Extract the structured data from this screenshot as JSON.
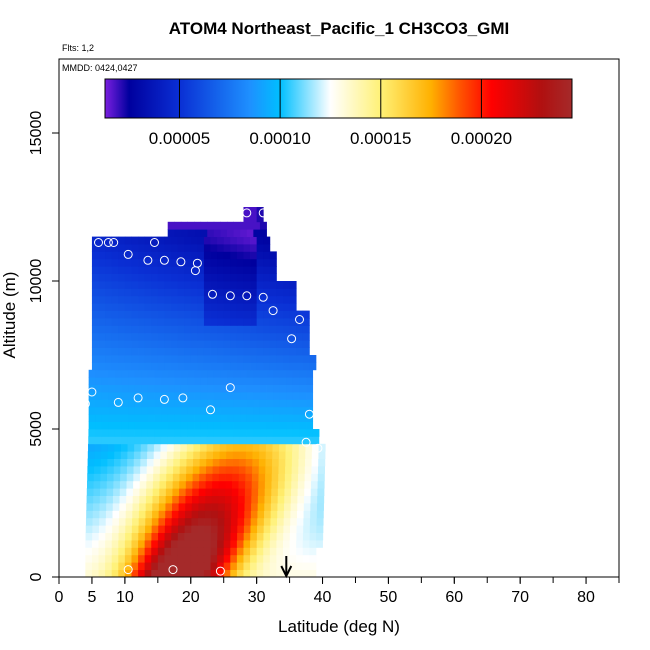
{
  "chart_data": {
    "type": "heatmap",
    "title": "ATOM4 Northeast_Pacific_1 CH3CO3_GMI",
    "flights_label": "Flts: 1,2",
    "dates_label": "MMDD: 0424,0427",
    "xlabel": "Latitude (deg N)",
    "ylabel": "Altitude (m)",
    "xlim": [
      0,
      85
    ],
    "ylim": [
      0,
      17500
    ],
    "x_ticks": [
      0,
      5,
      10,
      20,
      30,
      40,
      50,
      60,
      70,
      80
    ],
    "x_tick_labels": [
      "0",
      "5",
      "10",
      "20",
      "30",
      "40",
      "50",
      "60",
      "70",
      "80"
    ],
    "y_ticks": [
      0,
      5000,
      10000,
      15000
    ],
    "y_tick_labels": [
      "0",
      "5000",
      "10000",
      "15000"
    ],
    "colorbar": {
      "min": 1.3e-05,
      "max": 0.000245,
      "ticks": [
        5e-05,
        0.0001,
        0.00015,
        0.0002
      ],
      "tick_labels": [
        "0.00005",
        "0.00010",
        "0.00015",
        "0.00020"
      ],
      "colors": [
        "#7b1fe0",
        "#00009e",
        "#0a2fd4",
        "#1e90ff",
        "#00bfff",
        "#ffffff",
        "#fff176",
        "#ffb000",
        "#ff5000",
        "#ff0000",
        "#b01010",
        "#a52a2a"
      ]
    },
    "arrow_latitude": 34.5,
    "observations": [
      {
        "lat": 28.5,
        "alt": 12300
      },
      {
        "lat": 31,
        "alt": 12300
      },
      {
        "lat": 6,
        "alt": 11300
      },
      {
        "lat": 7.5,
        "alt": 11300
      },
      {
        "lat": 8.3,
        "alt": 11300
      },
      {
        "lat": 14.5,
        "alt": 11300
      },
      {
        "lat": 10.5,
        "alt": 10900
      },
      {
        "lat": 13.5,
        "alt": 10700
      },
      {
        "lat": 16,
        "alt": 10700
      },
      {
        "lat": 18.5,
        "alt": 10650
      },
      {
        "lat": 21,
        "alt": 10600
      },
      {
        "lat": 20.7,
        "alt": 10350
      },
      {
        "lat": 23.3,
        "alt": 9550
      },
      {
        "lat": 26,
        "alt": 9500
      },
      {
        "lat": 28.5,
        "alt": 9500
      },
      {
        "lat": 31,
        "alt": 9450
      },
      {
        "lat": 32.5,
        "alt": 9000
      },
      {
        "lat": 36.5,
        "alt": 8700
      },
      {
        "lat": 35.3,
        "alt": 8050
      },
      {
        "lat": 26,
        "alt": 6400
      },
      {
        "lat": 5,
        "alt": 6250
      },
      {
        "lat": 12,
        "alt": 6050
      },
      {
        "lat": 16,
        "alt": 6000
      },
      {
        "lat": 18.8,
        "alt": 6050
      },
      {
        "lat": 4,
        "alt": 5850
      },
      {
        "lat": 9,
        "alt": 5900
      },
      {
        "lat": 23,
        "alt": 5650
      },
      {
        "lat": 38,
        "alt": 5500
      },
      {
        "lat": 37.5,
        "alt": 4550
      },
      {
        "lat": 39.3,
        "alt": 4350
      },
      {
        "lat": 10.5,
        "alt": 250
      },
      {
        "lat": 17.3,
        "alt": 250
      },
      {
        "lat": 24.5,
        "alt": 200
      }
    ]
  }
}
